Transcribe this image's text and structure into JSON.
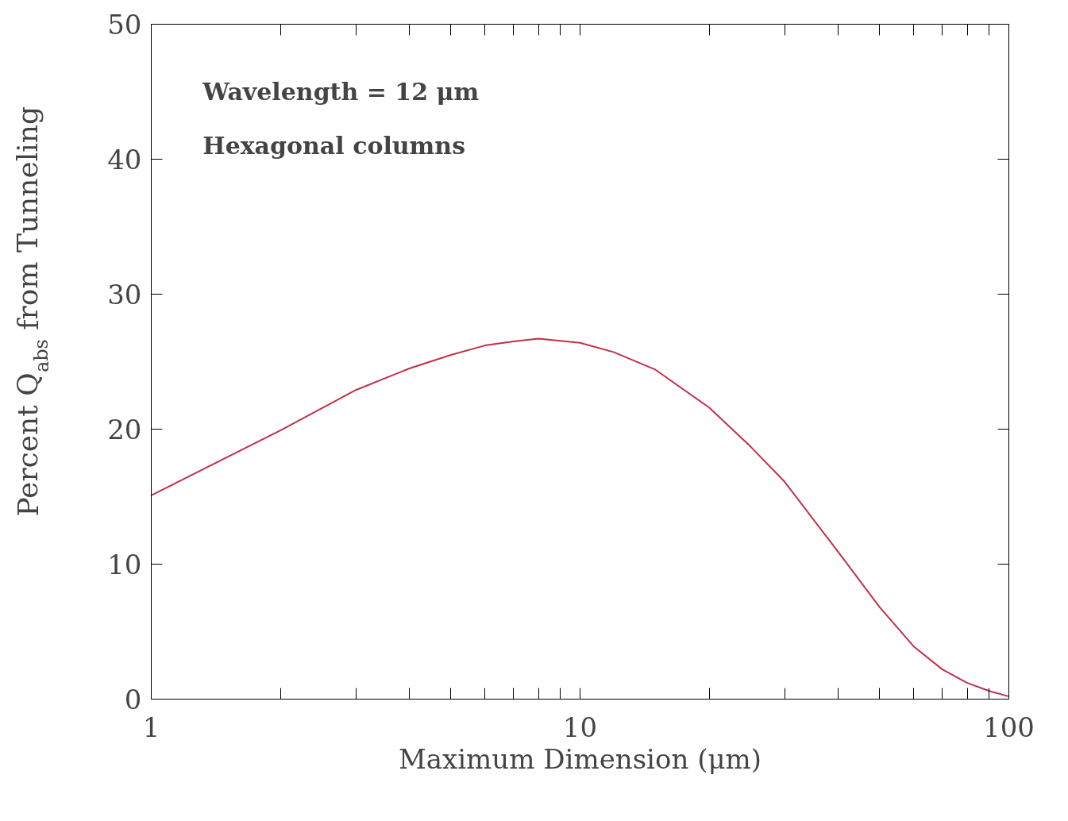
{
  "chart_data": {
    "type": "line",
    "xlabel": "Maximum Dimension (μm)",
    "ylabel": "Percent Q$_{abs}$ from Tunneling",
    "annotations": [
      "Wavelength = 12 μm",
      "Hexagonal columns"
    ],
    "log": "x",
    "xlim": [
      1,
      100
    ],
    "ylim": [
      0,
      50
    ],
    "xticks": [
      1,
      {
        "value": 2,
        "label": null
      },
      {
        "value": 3,
        "label": null
      },
      {
        "value": 4,
        "label": null
      },
      {
        "value": 5,
        "label": null
      },
      {
        "value": 6,
        "label": null
      },
      {
        "value": 7,
        "label": null
      },
      {
        "value": 8,
        "label": null
      },
      {
        "value": 9,
        "label": null
      },
      10,
      {
        "value": 20,
        "label": null
      },
      {
        "value": 30,
        "label": null
      },
      {
        "value": 40,
        "label": null
      },
      {
        "value": 50,
        "label": null
      },
      {
        "value": 60,
        "label": null
      },
      {
        "value": 70,
        "label": null
      },
      {
        "value": 80,
        "label": null
      },
      {
        "value": 90,
        "label": null
      },
      100
    ],
    "yticks": [
      0,
      10,
      20,
      30,
      40,
      50
    ],
    "grid": false,
    "x": [
      1,
      2,
      3,
      4,
      5,
      6,
      7,
      8,
      10,
      12,
      15,
      20,
      25,
      30,
      40,
      50,
      60,
      70,
      80,
      90,
      100
    ],
    "series": [
      {
        "color": "#c0304a",
        "values": [
          15.1,
          19.9,
          22.9,
          24.5,
          25.5,
          26.2,
          26.5,
          26.7,
          26.4,
          25.7,
          24.4,
          21.6,
          18.7,
          16.1,
          10.9,
          6.8,
          3.9,
          2.2,
          1.2,
          0.6,
          0.2
        ]
      }
    ]
  }
}
